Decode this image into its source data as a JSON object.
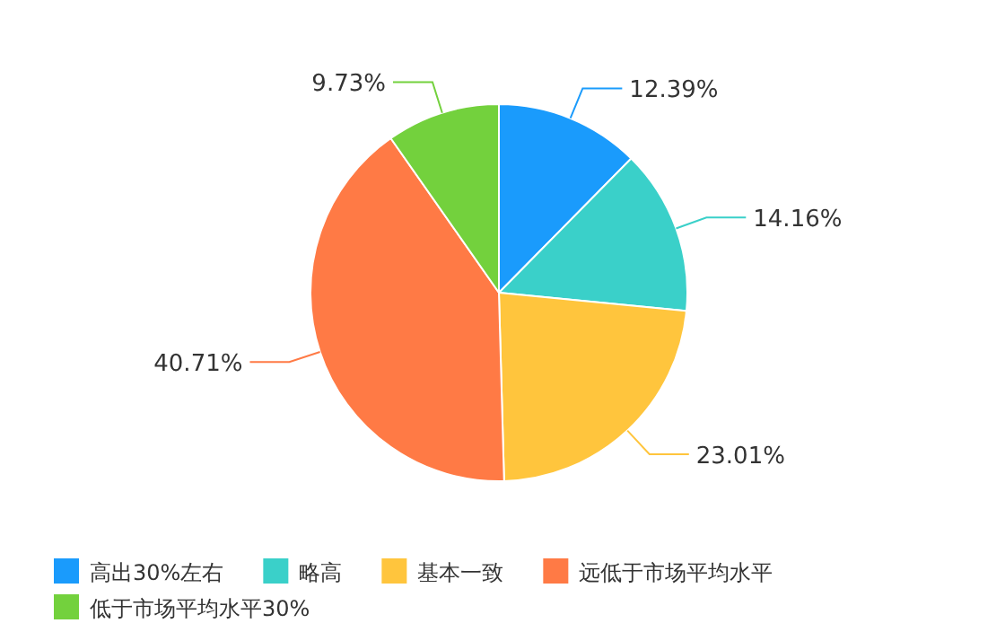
{
  "chart_data": {
    "type": "pie",
    "categories": [
      "高出30%左右",
      "略高",
      "基本一致",
      "远低于市场平均水平",
      "低于市场平均水平30%"
    ],
    "values": [
      12.39,
      14.16,
      23.01,
      40.71,
      9.73
    ],
    "value_labels": [
      "12.39%",
      "14.16%",
      "23.01%",
      "40.71%",
      "9.73%"
    ],
    "colors": [
      "#1a9bfc",
      "#3ad0c9",
      "#ffc53d",
      "#ff7a45",
      "#73d13d"
    ],
    "legend": "bottom"
  }
}
